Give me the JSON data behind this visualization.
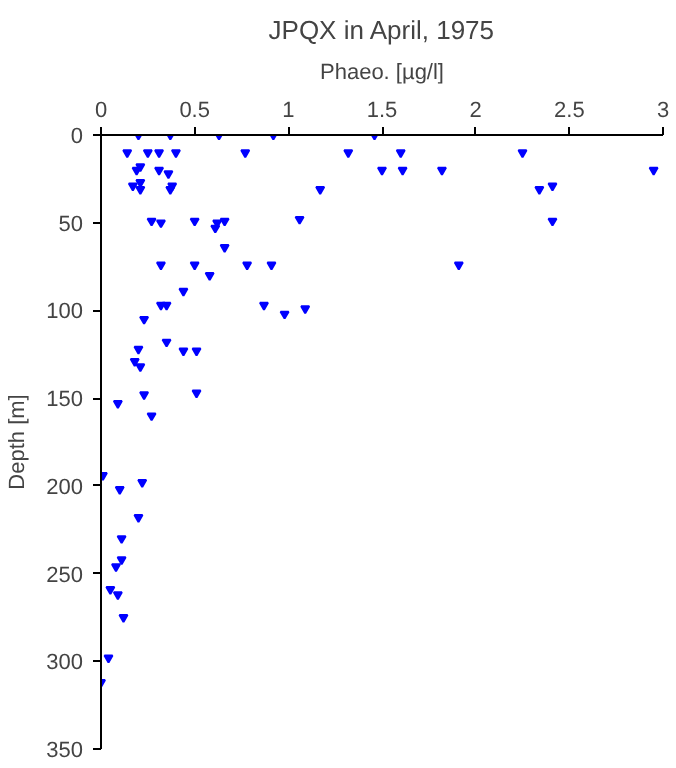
{
  "chart_data": {
    "type": "scatter",
    "title": "JPQX in April, 1975",
    "xlabel": "Phaeo. [µg/l]",
    "ylabel": "Depth [m]",
    "xlim": [
      0,
      3
    ],
    "xticks": [
      0,
      0.5,
      1,
      1.5,
      2,
      2.5,
      3
    ],
    "ylim": [
      350,
      0
    ],
    "yticks": [
      0,
      50,
      100,
      150,
      200,
      250,
      300,
      350
    ],
    "grid": false,
    "marker": "triangle",
    "series": [
      {
        "color": "#0000ff",
        "x": [
          0.2,
          0.37,
          0.63,
          0.92,
          1.46,
          0.14,
          0.25,
          0.31,
          0.4,
          0.77,
          1.32,
          1.6,
          2.25,
          0.19,
          0.31,
          1.5,
          1.61,
          1.82,
          2.95,
          0.21,
          0.36,
          0.17,
          0.21,
          0.21,
          0.38,
          0.37,
          1.17,
          2.34,
          2.41,
          0.27,
          0.32,
          0.5,
          0.62,
          0.66,
          0.61,
          1.06,
          2.41,
          0.66,
          0.32,
          0.5,
          0.78,
          0.91,
          1.91,
          0.58,
          0.44,
          0.32,
          0.35,
          0.87,
          1.09,
          0.98,
          0.23,
          0.44,
          0.51,
          0.2,
          0.35,
          0.18,
          0.21,
          0.23,
          0.51,
          0.09,
          0.27,
          0.01,
          0.22,
          0.1,
          0.2,
          0.11,
          0.11,
          0.08,
          0.05,
          0.09,
          0.12,
          0.04,
          0.0
        ],
        "values": [
          0,
          0,
          0,
          0,
          0,
          10,
          10,
          10,
          10,
          10,
          10,
          10,
          10,
          20,
          20,
          20,
          20,
          20,
          20,
          18,
          22,
          29,
          27,
          31,
          29,
          31,
          31,
          31,
          29,
          49,
          50,
          49,
          50,
          49,
          53,
          48,
          49,
          64,
          74,
          74,
          74,
          74,
          74,
          80,
          89,
          97,
          97,
          97,
          99,
          102,
          105,
          123,
          123,
          122,
          118,
          129,
          132,
          148,
          147,
          153,
          160,
          194,
          198,
          202,
          218,
          230,
          242,
          246,
          259,
          262,
          275,
          298,
          312
        ]
      }
    ]
  }
}
